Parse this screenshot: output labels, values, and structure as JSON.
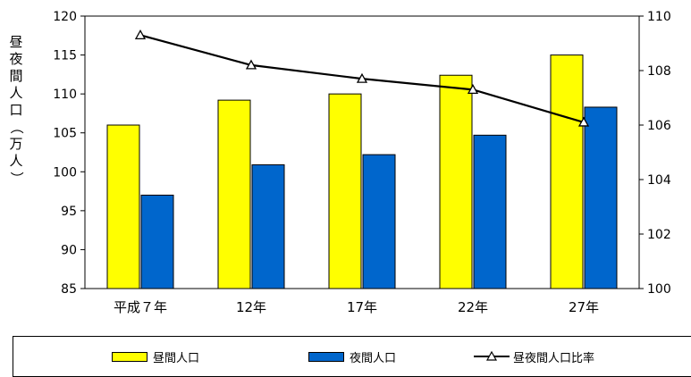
{
  "chart_data": {
    "type": "bar",
    "categories": [
      "平成７年",
      "12年",
      "17年",
      "22年",
      "27年"
    ],
    "series": [
      {
        "name": "昼間人口",
        "type": "bar",
        "axis": "left",
        "color": "#FFFF00",
        "values": [
          106.0,
          109.2,
          110.0,
          112.4,
          115.0
        ]
      },
      {
        "name": "夜間人口",
        "type": "bar",
        "axis": "left",
        "color": "#0066CC",
        "values": [
          97.0,
          100.9,
          102.2,
          104.7,
          108.3
        ]
      },
      {
        "name": "昼夜間人口比率",
        "type": "line",
        "axis": "right",
        "color": "#000000",
        "marker": "triangle",
        "values": [
          109.3,
          108.2,
          107.7,
          107.3,
          106.1
        ]
      }
    ],
    "ylabel": "昼夜間人口（万人）",
    "ylim": [
      85,
      120
    ],
    "yticks": [
      "120",
      "115",
      "110",
      "105",
      "100",
      "95",
      "90",
      "85"
    ],
    "y2lim": [
      100,
      110
    ],
    "y2ticks": [
      "110",
      "108",
      "106",
      "104",
      "102",
      "100"
    ],
    "grid": false,
    "legend_position": "bottom"
  }
}
